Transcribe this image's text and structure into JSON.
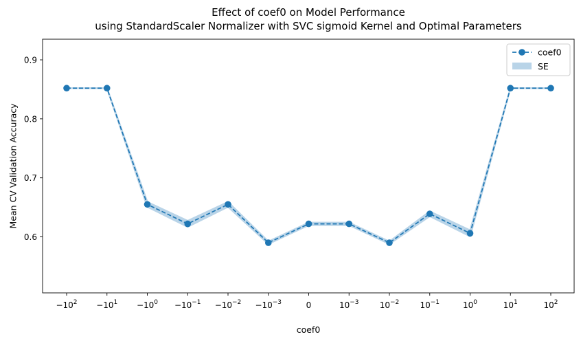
{
  "chart_data": {
    "type": "line",
    "title_lines": [
      "Effect of coef0 on Model Performance",
      "using StandardScaler Normalizer with SVC sigmoid Kernel and Optimal Parameters"
    ],
    "xlabel": "coef0",
    "ylabel": "Mean CV Validation Accuracy",
    "x_ticks": [
      {
        "base": "−10",
        "exp": "2"
      },
      {
        "base": "−10",
        "exp": "1"
      },
      {
        "base": "−10",
        "exp": "0"
      },
      {
        "base": "−10",
        "exp": "−1"
      },
      {
        "base": "−10",
        "exp": "−2"
      },
      {
        "base": "−10",
        "exp": "−3"
      },
      {
        "base": "0",
        "exp": ""
      },
      {
        "base": "10",
        "exp": "−3"
      },
      {
        "base": "10",
        "exp": "−2"
      },
      {
        "base": "10",
        "exp": "−1"
      },
      {
        "base": "10",
        "exp": "0"
      },
      {
        "base": "10",
        "exp": "1"
      },
      {
        "base": "10",
        "exp": "2"
      }
    ],
    "ylim": [
      0.505,
      0.935
    ],
    "y_ticks": [
      0.6,
      0.7,
      0.8,
      0.9
    ],
    "y_tick_labels": [
      "0.6",
      "0.7",
      "0.8",
      "0.9"
    ],
    "series": [
      {
        "name": "coef0",
        "values": [
          0.852,
          0.852,
          0.655,
          0.622,
          0.655,
          0.59,
          0.622,
          0.622,
          0.59,
          0.639,
          0.606,
          0.852,
          0.852
        ],
        "se": [
          0.0,
          0.0,
          0.004,
          0.005,
          0.004,
          0.002,
          0.002,
          0.002,
          0.002,
          0.004,
          0.005,
          0.0,
          0.0
        ]
      }
    ],
    "legend": {
      "placement": "top-right",
      "line_label": "coef0",
      "band_label": "SE"
    },
    "grid": false,
    "line_color": "#1f77b4",
    "band_color": "#b9d4e8"
  }
}
